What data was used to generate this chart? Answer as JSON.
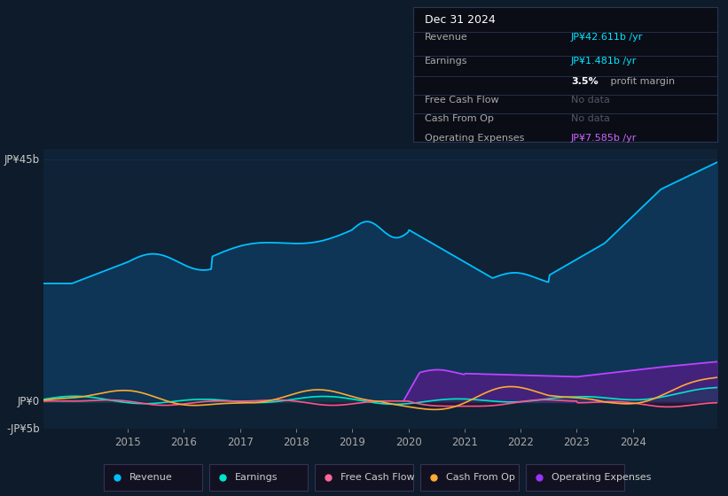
{
  "background_color": "#0d1b2a",
  "plot_bg_color": "#0f2236",
  "title": "Dec 31 2024",
  "x_ticks": [
    2015,
    2016,
    2017,
    2018,
    2019,
    2020,
    2021,
    2022,
    2023,
    2024
  ],
  "legend": [
    {
      "label": "Revenue",
      "color": "#00bfff"
    },
    {
      "label": "Earnings",
      "color": "#00e5cc"
    },
    {
      "label": "Free Cash Flow",
      "color": "#ff6699"
    },
    {
      "label": "Cash From Op",
      "color": "#ffaa33"
    },
    {
      "label": "Operating Expenses",
      "color": "#9933ff"
    }
  ],
  "revenue_color": "#00bfff",
  "revenue_fill": "#0e3555",
  "earnings_color": "#00e5cc",
  "fcf_color": "#ff5588",
  "cashop_color": "#ffaa33",
  "opex_color": "#bb44ff",
  "opex_fill": "#4a2080",
  "grid_color": "#1a3a5a",
  "axis_label_color": "#cccccc",
  "tick_color": "#aaaaaa",
  "ylim": [
    -5,
    47
  ],
  "xlim": [
    2013.5,
    2025.5
  ]
}
